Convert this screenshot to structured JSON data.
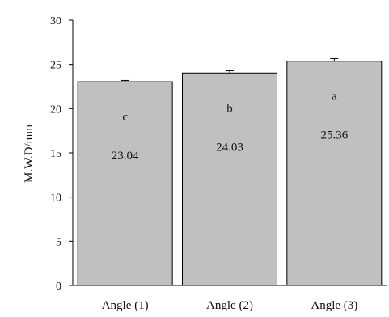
{
  "chart_data": {
    "type": "bar",
    "title": "",
    "xlabel": "",
    "ylabel": "M.W.D/mm",
    "ylim": [
      0,
      30
    ],
    "yticks": [
      0,
      5,
      10,
      15,
      20,
      25,
      30
    ],
    "grid": false,
    "categories": [
      "Angle (1)",
      "Angle (2)",
      "Angle (3)"
    ],
    "values": [
      23.04,
      24.03,
      25.36
    ],
    "value_labels": [
      "23.04",
      "24.03",
      "25.36"
    ],
    "group_letters": [
      "c",
      "b",
      "a"
    ],
    "error": [
      0.15,
      0.25,
      0.3
    ],
    "colors": {
      "bar_fill": "#c0c0c0",
      "bar_stroke": "#000000",
      "axis": "#000000"
    }
  }
}
